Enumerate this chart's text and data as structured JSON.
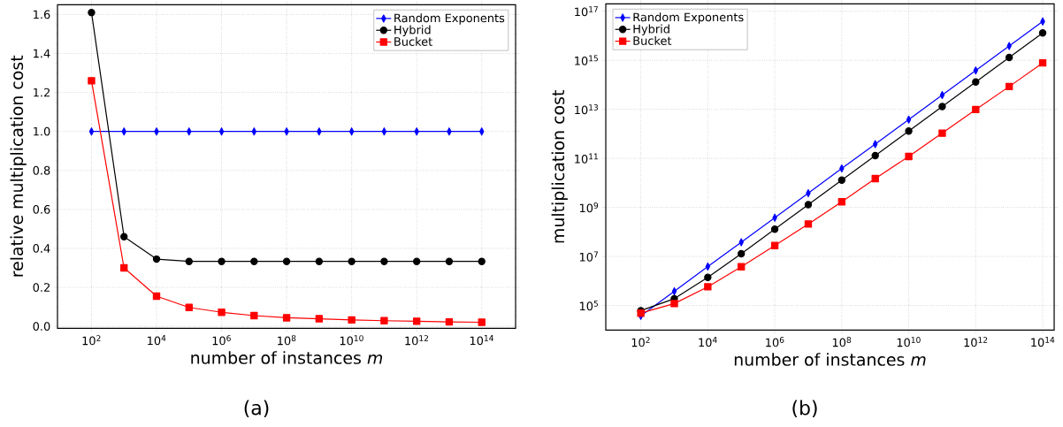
{
  "chart_data": [
    {
      "type": "line",
      "xlabel": "number of instances *m*",
      "ylabel": "relative multiplication cost",
      "log": "x",
      "grid": true,
      "legend": "top right",
      "x": [
        100.0,
        1000.0,
        10000.0,
        100000.0,
        1000000.0,
        10000000.0,
        100000000.0,
        1000000000.0,
        10000000000.0,
        100000000000.0,
        1000000000000.0,
        10000000000000.0,
        100000000000000.0
      ],
      "xlim": [
        9,
        1100000000000000.0
      ],
      "ylim": [
        -0.01,
        1.65
      ],
      "xticks": [
        {
          "value": 100.0,
          "label": "10$^{2}$"
        },
        {
          "value": 10000.0,
          "label": "10$^{4}$"
        },
        {
          "value": 1000000.0,
          "label": "10$^{6}$"
        },
        {
          "value": 100000000.0,
          "label": "10$^{8}$"
        },
        {
          "value": 10000000000.0,
          "label": "10$^{10}$"
        },
        {
          "value": 1000000000000.0,
          "label": "10$^{12}$"
        },
        {
          "value": 100000000000000.0,
          "label": "10$^{14}$"
        }
      ],
      "yticks": [
        {
          "value": 0,
          "label": "0.0"
        },
        {
          "value": 0.2,
          "label": "0.2"
        },
        {
          "value": 0.4,
          "label": "0.4"
        },
        {
          "value": 0.6,
          "label": "0.6"
        },
        {
          "value": 0.8,
          "label": "0.8"
        },
        {
          "value": 1.0,
          "label": "1.0"
        },
        {
          "value": 1.2,
          "label": "1.2"
        },
        {
          "value": 1.4,
          "label": "1.4"
        },
        {
          "value": 1.6,
          "label": "1.6"
        }
      ],
      "series": [
        {
          "name": "Random Exponents",
          "color": "#0000ff",
          "marker": "diamond",
          "values": [
            1.0,
            1.0,
            1.0,
            1.0,
            1.0,
            1.0,
            1.0,
            1.0,
            1.0,
            1.0,
            1.0,
            1.0,
            1.0
          ]
        },
        {
          "name": "Hybrid",
          "color": "#000000",
          "marker": "circle",
          "values": [
            1.61,
            0.46,
            0.345,
            0.333,
            0.333,
            0.333,
            0.333,
            0.333,
            0.333,
            0.333,
            0.333,
            0.333,
            0.333
          ]
        },
        {
          "name": "Bucket",
          "color": "#ff0000",
          "marker": "square",
          "values": [
            1.26,
            0.3,
            0.155,
            0.097,
            0.072,
            0.055,
            0.044,
            0.039,
            0.033,
            0.029,
            0.026,
            0.023,
            0.021
          ]
        }
      ],
      "annotations": [
        "(a)"
      ]
    },
    {
      "type": "line",
      "xlabel": "number of instances *m*",
      "ylabel": "multiplication cost",
      "log": "xy",
      "grid": true,
      "legend": "top left",
      "x": [
        100.0,
        1000.0,
        10000.0,
        100000.0,
        1000000.0,
        10000000.0,
        100000000.0,
        1000000000.0,
        10000000000.0,
        100000000000.0,
        1000000000000.0,
        10000000000000.0,
        100000000000000.0
      ],
      "xlim": [
        9,
        220000000000000.0
      ],
      "ylim": [
        10000.0,
        2e+17
      ],
      "xticks": [
        {
          "value": 100.0,
          "label": "10$^{2}$"
        },
        {
          "value": 10000.0,
          "label": "10$^{4}$"
        },
        {
          "value": 1000000.0,
          "label": "10$^{6}$"
        },
        {
          "value": 100000000.0,
          "label": "10$^{8}$"
        },
        {
          "value": 10000000000.0,
          "label": "10$^{10}$"
        },
        {
          "value": 1000000000000.0,
          "label": "10$^{12}$"
        },
        {
          "value": 100000000000000.0,
          "label": "10$^{14}$"
        }
      ],
      "yticks": [
        {
          "value": 100000.0,
          "label": "10$^{5}$"
        },
        {
          "value": 10000000.0,
          "label": "10$^{7}$"
        },
        {
          "value": 1000000000.0,
          "label": "10$^{9}$"
        },
        {
          "value": 100000000000.0,
          "label": "10$^{11}$"
        },
        {
          "value": 10000000000000.0,
          "label": "10$^{13}$"
        },
        {
          "value": 1000000000000000.0,
          "label": "10$^{15}$"
        },
        {
          "value": 1e+17,
          "label": "10$^{17}$"
        }
      ],
      "series": [
        {
          "name": "Random Exponents",
          "color": "#0000ff",
          "marker": "diamond",
          "values": [
            38000.0,
            380000.0,
            3900000.0,
            38000000.0,
            380000000.0,
            3800000000.0,
            39000000000.0,
            380000000000.0,
            3800000000000.0,
            38000000000000.0,
            380000000000000.0,
            3800000000000000.0,
            3.8e+16
          ]
        },
        {
          "name": "Hybrid",
          "color": "#000000",
          "marker": "circle",
          "values": [
            62000.0,
            190000.0,
            1400000.0,
            13000000.0,
            130000000.0,
            1300000000.0,
            13000000000.0,
            130000000000.0,
            1300000000000.0,
            13000000000000.0,
            130000000000000.0,
            1300000000000000.0,
            1.3e+16
          ]
        },
        {
          "name": "Bucket",
          "color": "#ff0000",
          "marker": "square",
          "values": [
            49000.0,
            120000.0,
            580000.0,
            3800000.0,
            28000000.0,
            210000000.0,
            1700000000.0,
            15000000000.0,
            120000000000.0,
            1070000000000.0,
            9800000000000.0,
            85000000000000.0,
            780000000000000.0
          ]
        }
      ],
      "annotations": [
        "(b)"
      ]
    }
  ]
}
